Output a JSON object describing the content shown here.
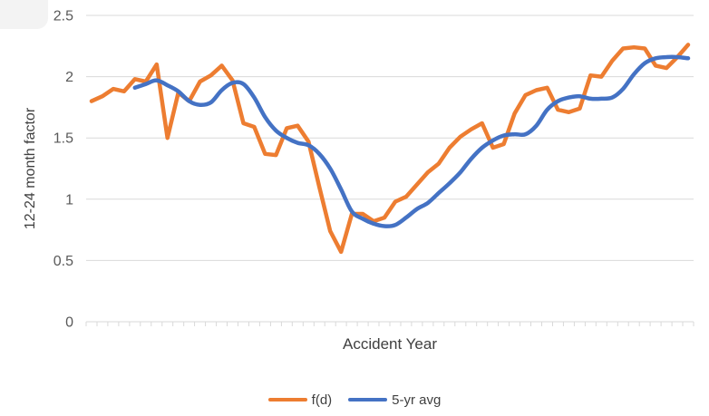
{
  "window": {
    "background": "#ffffff"
  },
  "chart_data": {
    "type": "line",
    "title": "",
    "xlabel": "Accident Year",
    "ylabel": "12-24 month factor",
    "ylim": [
      0,
      2.5
    ],
    "yticks": [
      0,
      0.5,
      1,
      1.5,
      2,
      2.5
    ],
    "ytick_labels": [
      "0",
      "0.5",
      "1",
      "1.5",
      "2",
      "2.5"
    ],
    "x_tick_labels": [],
    "x_note": "56 unlabeled accident-year categories marked only by small ticks",
    "n_categories": 56,
    "grid": "horizontal",
    "legend_position": "bottom",
    "series": [
      {
        "name": "f(d)",
        "color": "#ED7D31",
        "start_index": 0,
        "smooth": false,
        "values": [
          1.8,
          1.84,
          1.9,
          1.88,
          1.98,
          1.96,
          2.1,
          1.5,
          1.87,
          1.8,
          1.96,
          2.01,
          2.09,
          1.97,
          1.62,
          1.59,
          1.37,
          1.36,
          1.58,
          1.6,
          1.47,
          1.1,
          0.74,
          0.57,
          0.88,
          0.88,
          0.82,
          0.85,
          0.98,
          1.02,
          1.12,
          1.22,
          1.29,
          1.42,
          1.51,
          1.57,
          1.62,
          1.42,
          1.45,
          1.7,
          1.85,
          1.89,
          1.91,
          1.73,
          1.71,
          1.74,
          2.01,
          2.0,
          2.13,
          2.23,
          2.24,
          2.23,
          2.09,
          2.07,
          2.16,
          2.26
        ]
      },
      {
        "name": "5-yr avg",
        "color": "#4472C4",
        "start_index": 4,
        "smooth": true,
        "values": [
          1.91,
          1.94,
          1.97,
          1.93,
          1.88,
          1.8,
          1.77,
          1.79,
          1.89,
          1.95,
          1.94,
          1.83,
          1.67,
          1.56,
          1.5,
          1.46,
          1.44,
          1.37,
          1.25,
          1.08,
          0.9,
          0.84,
          0.8,
          0.78,
          0.79,
          0.85,
          0.92,
          0.97,
          1.05,
          1.13,
          1.22,
          1.33,
          1.42,
          1.48,
          1.52,
          1.53,
          1.53,
          1.6,
          1.73,
          1.8,
          1.83,
          1.84,
          1.82,
          1.82,
          1.83,
          1.9,
          2.02,
          2.11,
          2.15,
          2.16,
          2.16,
          2.15
        ]
      }
    ],
    "colors": {
      "gridline": "#D9D9D9",
      "axis_line": "#D9D9D9",
      "tick_mark": "#D9D9D9",
      "tick_label": "#595959",
      "axis_title": "#404040",
      "legend_text": "#404040"
    }
  }
}
